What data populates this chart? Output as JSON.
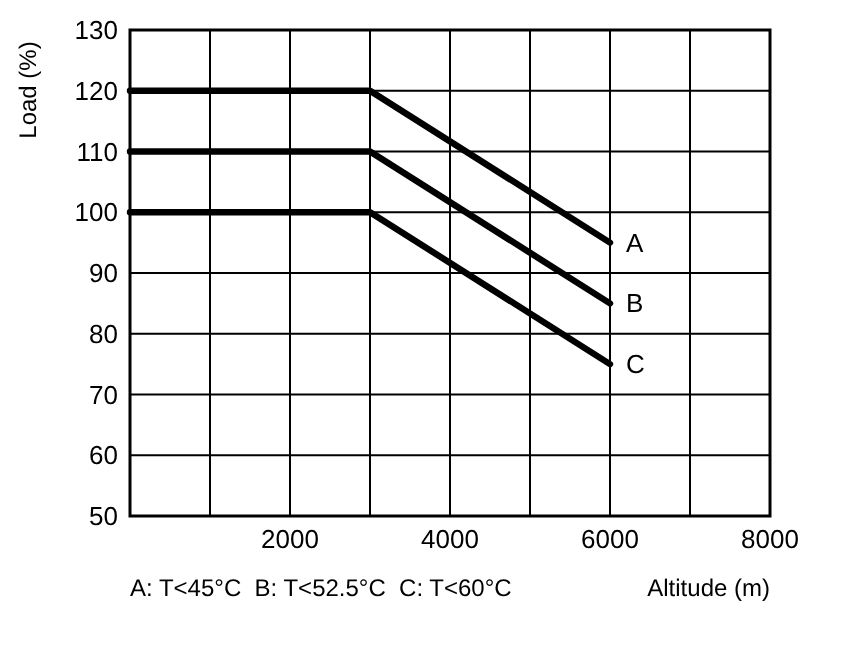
{
  "chart_data": {
    "type": "line",
    "ylabel": "Load (%)",
    "xlabel": "Altitude (m)",
    "x": [
      0,
      3000,
      6000
    ],
    "series": [
      {
        "name": "A",
        "color": "#000000",
        "values": [
          120,
          120,
          95
        ]
      },
      {
        "name": "B",
        "color": "#000000",
        "values": [
          110,
          110,
          85
        ]
      },
      {
        "name": "C",
        "color": "#000000",
        "values": [
          100,
          100,
          75
        ]
      }
    ],
    "xlim": [
      0,
      8000
    ],
    "xticks": [
      {
        "value": 0,
        "label": null
      },
      {
        "value": 1000,
        "label": null
      },
      2000,
      {
        "value": 3000,
        "label": null
      },
      4000,
      {
        "value": 5000,
        "label": null
      },
      6000,
      {
        "value": 7000,
        "label": null
      },
      8000
    ],
    "ylim": [
      50,
      130
    ],
    "yticks": [
      50,
      60,
      70,
      80,
      90,
      100,
      110,
      120,
      130
    ],
    "grid": true,
    "marker": "none",
    "line_style": "solid",
    "annotations": [
      "A: T<45°C  B: T<52.5°C  C: T<60°C"
    ]
  }
}
